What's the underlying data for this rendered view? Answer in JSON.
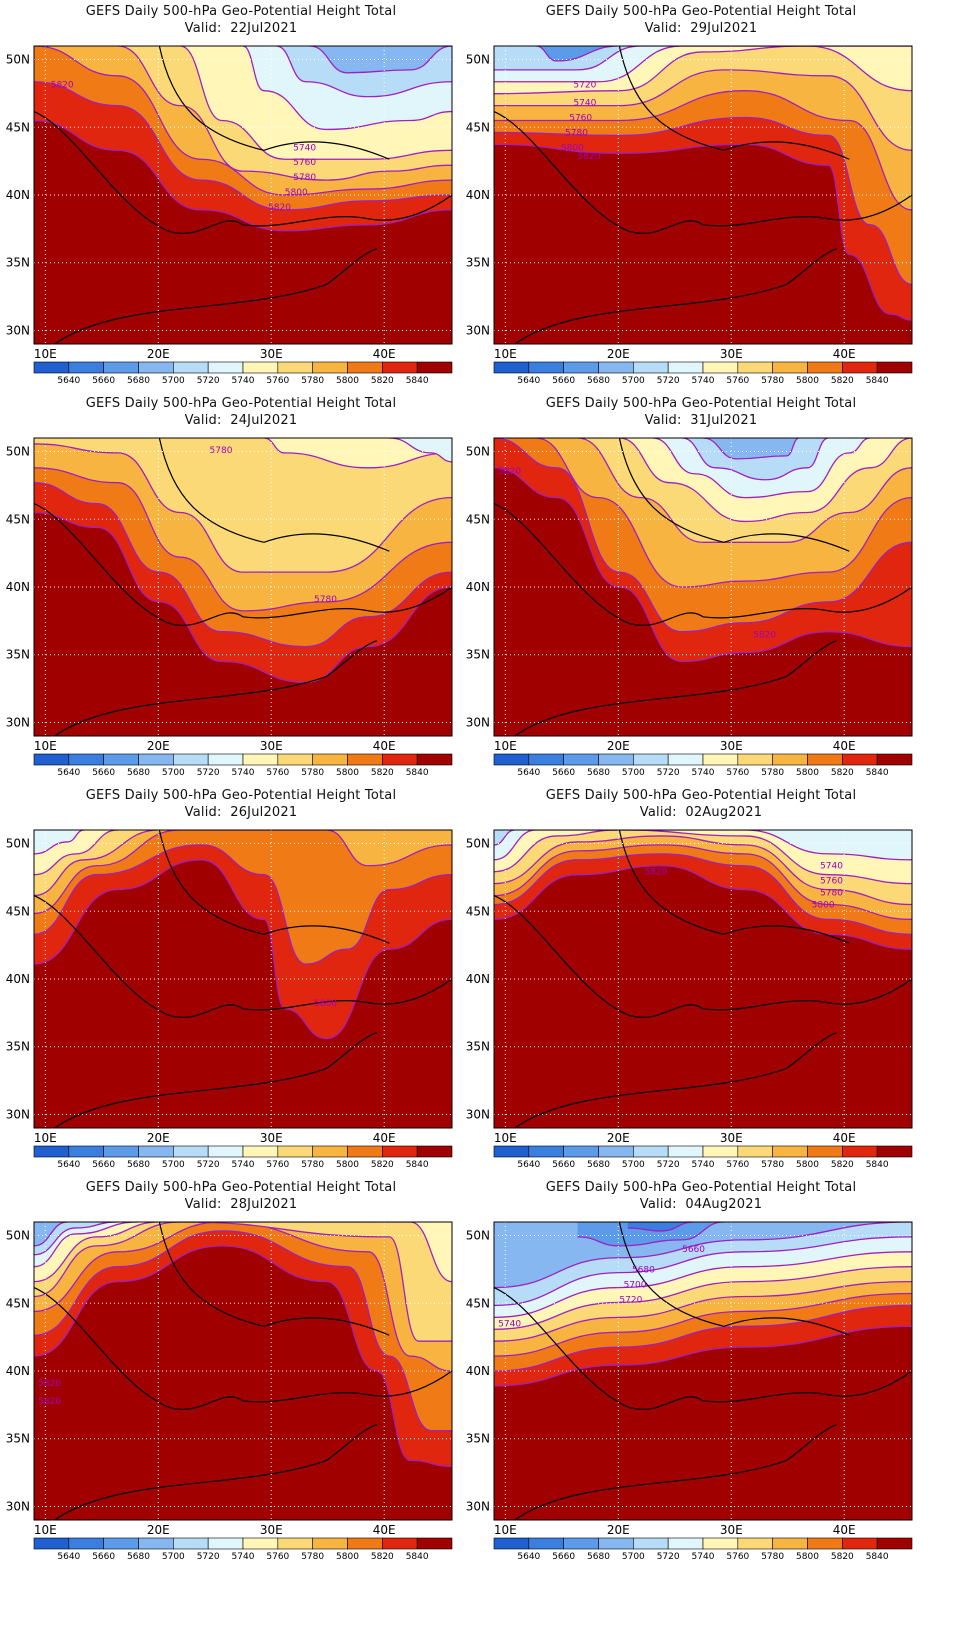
{
  "figure": {
    "product_title": "GEFS Daily 500-hPa Geo-Potential Height Total",
    "valid_prefix": "Valid:",
    "x_ticks": [
      "10E",
      "20E",
      "30E",
      "40E"
    ],
    "y_ticks": [
      "50N",
      "45N",
      "40N",
      "35N",
      "30N"
    ],
    "colorbar": {
      "labels": [
        "5640",
        "5660",
        "5680",
        "5700",
        "5720",
        "5740",
        "5760",
        "5780",
        "5800",
        "5820",
        "5840"
      ],
      "colors": [
        "#1f5fd0",
        "#3a7fe0",
        "#5c9aea",
        "#87b7f0",
        "#b7dcf7",
        "#e0f6fb",
        "#fff6b8",
        "#fcd977",
        "#f8b440",
        "#f07b16",
        "#e0260e",
        "#a00000"
      ]
    }
  },
  "chart_data": [
    {
      "type": "contour-map",
      "valid": "22Jul2021",
      "contour_labels": [
        "5820",
        "5740",
        "5760",
        "5780",
        "5800",
        "5820"
      ],
      "lon_range": [
        9,
        46
      ],
      "lat_range": [
        29,
        51
      ]
    },
    {
      "type": "contour-map",
      "valid": "29Jul2021",
      "contour_labels": [
        "5720",
        "5740",
        "5760",
        "5780",
        "5800",
        "5820"
      ],
      "lon_range": [
        9,
        46
      ],
      "lat_range": [
        29,
        51
      ]
    },
    {
      "type": "contour-map",
      "valid": "24Jul2021",
      "contour_labels": [
        "5780",
        "5780"
      ],
      "lon_range": [
        9,
        46
      ],
      "lat_range": [
        29,
        51
      ]
    },
    {
      "type": "contour-map",
      "valid": "31Jul2021",
      "contour_labels": [
        "5820",
        "5820"
      ],
      "lon_range": [
        9,
        46
      ],
      "lat_range": [
        29,
        51
      ]
    },
    {
      "type": "contour-map",
      "valid": "26Jul2021",
      "contour_labels": [
        "5800"
      ],
      "lon_range": [
        9,
        46
      ],
      "lat_range": [
        29,
        51
      ]
    },
    {
      "type": "contour-map",
      "valid": "02Aug2021",
      "contour_labels": [
        "5820",
        "5740",
        "5760",
        "5780",
        "5800"
      ],
      "lon_range": [
        9,
        46
      ],
      "lat_range": [
        29,
        51
      ]
    },
    {
      "type": "contour-map",
      "valid": "28Jul2021",
      "contour_labels": [
        "5820",
        "5820"
      ],
      "lon_range": [
        9,
        46
      ],
      "lat_range": [
        29,
        51
      ]
    },
    {
      "type": "contour-map",
      "valid": "04Aug2021",
      "contour_labels": [
        "5660",
        "5680",
        "5700",
        "5720",
        "5740"
      ],
      "lon_range": [
        9,
        46
      ],
      "lat_range": [
        29,
        51
      ]
    }
  ]
}
